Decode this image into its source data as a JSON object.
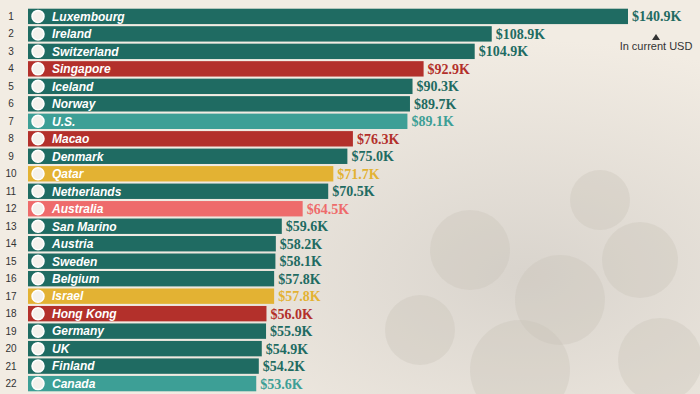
{
  "chart_data": {
    "type": "bar",
    "orientation": "horizontal",
    "data_labels": true,
    "tick_labels": false,
    "annotation": "In current USD",
    "ranks": [
      1,
      2,
      3,
      4,
      5,
      6,
      7,
      8,
      9,
      10,
      11,
      12,
      13,
      14,
      15,
      16,
      17,
      18,
      19,
      20,
      21,
      22
    ],
    "categories": [
      "Luxembourg",
      "Ireland",
      "Switzerland",
      "Singapore",
      "Iceland",
      "Norway",
      "U.S.",
      "Macao",
      "Denmark",
      "Qatar",
      "Netherlands",
      "Australia",
      "San Marino",
      "Austria",
      "Sweden",
      "Belgium",
      "Israel",
      "Hong Kong",
      "Germany",
      "UK",
      "Finland",
      "Canada"
    ],
    "values": [
      140.9,
      108.9,
      104.9,
      92.9,
      90.3,
      89.7,
      89.1,
      76.3,
      75.0,
      71.7,
      70.5,
      64.5,
      59.6,
      58.2,
      58.1,
      57.8,
      57.8,
      56.0,
      55.9,
      54.9,
      54.2,
      53.6
    ],
    "value_labels": [
      "$140.9K",
      "$108.9K",
      "$104.9K",
      "$92.9K",
      "$90.3K",
      "$89.7K",
      "$89.1K",
      "$76.3K",
      "$75.0K",
      "$71.7K",
      "$70.5K",
      "$64.5K",
      "$59.6K",
      "$58.2K",
      "$58.1K",
      "$57.8K",
      "$57.8K",
      "$56.0K",
      "$55.9K",
      "$54.9K",
      "$54.2K",
      "$53.6K"
    ],
    "colors": [
      "#1f6b62",
      "#1f6b62",
      "#1f6b62",
      "#b3302b",
      "#1f6b62",
      "#1f6b62",
      "#3d9f96",
      "#b3302b",
      "#1f6b62",
      "#e3b233",
      "#1f6b62",
      "#ee6b6b",
      "#1f6b62",
      "#1f6b62",
      "#1f6b62",
      "#1f6b62",
      "#e3b233",
      "#b3302b",
      "#1f6b62",
      "#1f6b62",
      "#1f6b62",
      "#3d9f96"
    ]
  }
}
